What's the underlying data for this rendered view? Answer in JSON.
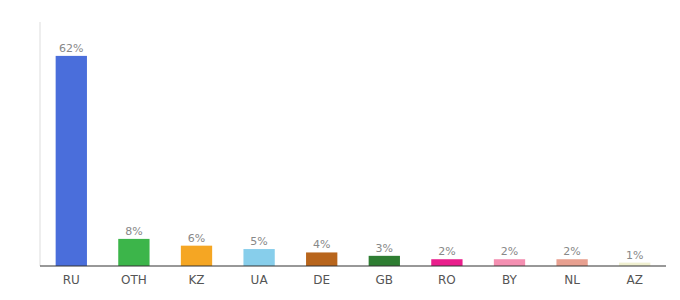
{
  "chart_data": {
    "type": "bar",
    "categories": [
      "RU",
      "OTH",
      "KZ",
      "UA",
      "DE",
      "GB",
      "RO",
      "BY",
      "NL",
      "AZ"
    ],
    "values": [
      62,
      8,
      6,
      5,
      4,
      3,
      2,
      2,
      2,
      1
    ],
    "value_labels": [
      "62%",
      "8%",
      "6%",
      "5%",
      "4%",
      "3%",
      "2%",
      "2%",
      "2%",
      "1%"
    ],
    "colors": [
      "#4A6EDB",
      "#3CB54A",
      "#F5A623",
      "#87CEEB",
      "#B8651C",
      "#2E7D32",
      "#E91E8C",
      "#F48FB1",
      "#E8A090",
      "#F0F0D0"
    ],
    "ylim": [
      0,
      72
    ],
    "data_labels": true,
    "tick_labels": "x"
  }
}
